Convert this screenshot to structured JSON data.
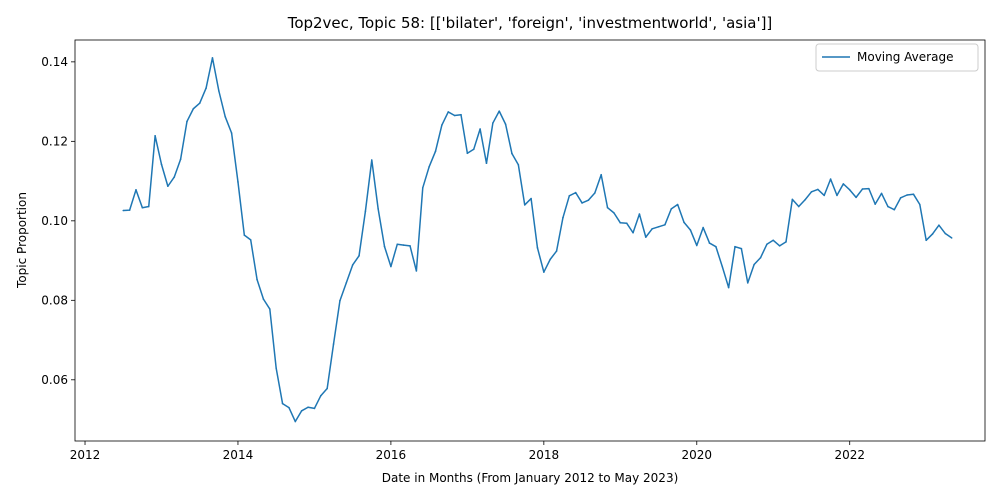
{
  "chart_data": {
    "type": "line",
    "title": "Top2vec, Topic 58: [['bilater', 'foreign', 'investmentworld', 'asia']]",
    "xlabel": "Date in Months (From January 2012 to May 2023)",
    "ylabel": "Topic Proportion",
    "xlim": [
      "2011-11-14",
      "2023-10-08"
    ],
    "ylim": [
      0.0446,
      0.1455
    ],
    "x_ticks": [
      "2012",
      "2014",
      "2016",
      "2018",
      "2020",
      "2022"
    ],
    "y_ticks": [
      "0.06",
      "0.08",
      "0.10",
      "0.12",
      "0.14"
    ],
    "grid": false,
    "legend_position": "top-right",
    "series": [
      {
        "name": "Moving Average",
        "color": "#1f77b4",
        "x": [
          "2012-07",
          "2012-08",
          "2012-09",
          "2012-10",
          "2012-11",
          "2012-12",
          "2013-01",
          "2013-02",
          "2013-03",
          "2013-04",
          "2013-05",
          "2013-06",
          "2013-07",
          "2013-08",
          "2013-09",
          "2013-10",
          "2013-11",
          "2013-12",
          "2014-01",
          "2014-02",
          "2014-03",
          "2014-04",
          "2014-05",
          "2014-06",
          "2014-07",
          "2014-08",
          "2014-09",
          "2014-10",
          "2014-11",
          "2014-12",
          "2015-01",
          "2015-02",
          "2015-03",
          "2015-04",
          "2015-05",
          "2015-06",
          "2015-07",
          "2015-08",
          "2015-09",
          "2015-10",
          "2015-11",
          "2015-12",
          "2016-01",
          "2016-02",
          "2016-03",
          "2016-04",
          "2016-05",
          "2016-06",
          "2016-07",
          "2016-08",
          "2016-09",
          "2016-10",
          "2016-11",
          "2016-12",
          "2017-01",
          "2017-02",
          "2017-03",
          "2017-04",
          "2017-05",
          "2017-06",
          "2017-07",
          "2017-08",
          "2017-09",
          "2017-10",
          "2017-11",
          "2017-12",
          "2018-01",
          "2018-02",
          "2018-03",
          "2018-04",
          "2018-05",
          "2018-06",
          "2018-07",
          "2018-08",
          "2018-09",
          "2018-10",
          "2018-11",
          "2018-12",
          "2019-01",
          "2019-02",
          "2019-03",
          "2019-04",
          "2019-05",
          "2019-06",
          "2019-07",
          "2019-08",
          "2019-09",
          "2019-10",
          "2019-11",
          "2019-12",
          "2020-01",
          "2020-02",
          "2020-03",
          "2020-04",
          "2020-05",
          "2020-06",
          "2020-07",
          "2020-08",
          "2020-09",
          "2020-10",
          "2020-11",
          "2020-12",
          "2021-01",
          "2021-02",
          "2021-03",
          "2021-04",
          "2021-05",
          "2021-06",
          "2021-07",
          "2021-08",
          "2021-09",
          "2021-10",
          "2021-11",
          "2021-12",
          "2022-01",
          "2022-02",
          "2022-03",
          "2022-04",
          "2022-05",
          "2022-06",
          "2022-07",
          "2022-08",
          "2022-09",
          "2022-10",
          "2022-11",
          "2022-12",
          "2023-01",
          "2023-02",
          "2023-03",
          "2023-04",
          "2023-05"
        ],
        "values": [
          0.1026,
          0.1027,
          0.1078,
          0.1033,
          0.1036,
          0.1214,
          0.1142,
          0.1087,
          0.111,
          0.1155,
          0.125,
          0.1282,
          0.1296,
          0.1334,
          0.141,
          0.1327,
          0.1262,
          0.1221,
          0.1098,
          0.0964,
          0.0952,
          0.0852,
          0.0803,
          0.0778,
          0.0629,
          0.054,
          0.053,
          0.0495,
          0.0522,
          0.0531,
          0.0528,
          0.056,
          0.0578,
          0.069,
          0.0799,
          0.0844,
          0.0889,
          0.0912,
          0.1024,
          0.1153,
          0.103,
          0.0935,
          0.0885,
          0.0941,
          0.0939,
          0.0937,
          0.0874,
          0.1083,
          0.1136,
          0.1175,
          0.1241,
          0.1274,
          0.1265,
          0.1267,
          0.117,
          0.118,
          0.1231,
          0.1145,
          0.1246,
          0.1276,
          0.1243,
          0.1169,
          0.1141,
          0.104,
          0.1056,
          0.0932,
          0.0871,
          0.0903,
          0.0924,
          0.1008,
          0.1063,
          0.1071,
          0.1045,
          0.1052,
          0.107,
          0.1116,
          0.1033,
          0.102,
          0.0995,
          0.0994,
          0.097,
          0.1017,
          0.0959,
          0.098,
          0.0985,
          0.099,
          0.103,
          0.1041,
          0.0996,
          0.0977,
          0.0938,
          0.0983,
          0.0944,
          0.0935,
          0.0885,
          0.0832,
          0.0935,
          0.093,
          0.0844,
          0.089,
          0.0907,
          0.0941,
          0.0951,
          0.0937,
          0.0947,
          0.1054,
          0.1036,
          0.1053,
          0.1073,
          0.1079,
          0.1064,
          0.1105,
          0.1064,
          0.1093,
          0.1078,
          0.1059,
          0.108,
          0.1081,
          0.1042,
          0.1069,
          0.1036,
          0.1028,
          0.1058,
          0.1065,
          0.1067,
          0.1041,
          0.0951,
          0.0967,
          0.0989,
          0.0968,
          0.0957
        ]
      }
    ]
  }
}
